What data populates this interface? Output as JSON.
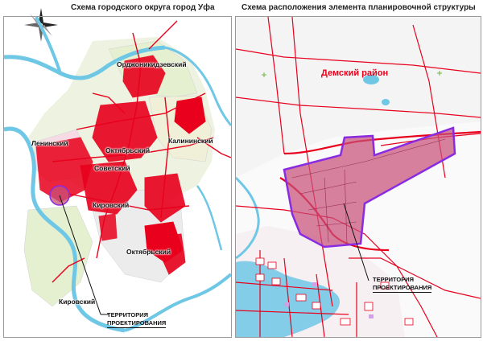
{
  "left_map": {
    "title": "Схема городского округа город Уфа",
    "districts": [
      {
        "id": "ordzhonikidzevsky",
        "label": "Орджоникидзевский"
      },
      {
        "id": "leninsky",
        "label": "Ленинский"
      },
      {
        "id": "oktyabrsky-north",
        "label": "Октябрьский"
      },
      {
        "id": "kalininsky",
        "label": "Калининский"
      },
      {
        "id": "sovetsky",
        "label": "Советский"
      },
      {
        "id": "kirovsky-center",
        "label": "Кировский"
      },
      {
        "id": "oktyabrsky-south",
        "label": "Октябрьский"
      },
      {
        "id": "kirovsky-south",
        "label": "Кировский"
      }
    ],
    "callout": {
      "line1": "ТЕРРИТОРИЯ",
      "line2": "ПРОЕКТИРОВАНИЯ"
    }
  },
  "right_map": {
    "title": "Схема расположения элемента планировочной структуры",
    "district_label": "Демский район",
    "callout": {
      "line1": "ТЕРРИТОРИЯ",
      "line2": "ПРОЕКТИРОВАНИЯ"
    }
  },
  "colors": {
    "river": "#6fc7e6",
    "urban": "#e8001c",
    "highlight_fill": "#c8507a",
    "highlight_stroke": "#8a2be2",
    "district_label": "#e8001c",
    "zone_green": "#e4f0cf",
    "zone_pink": "#f7dbe4",
    "zone_grey": "#ececec"
  },
  "icons": {
    "compass": "compass-rose-icon"
  }
}
